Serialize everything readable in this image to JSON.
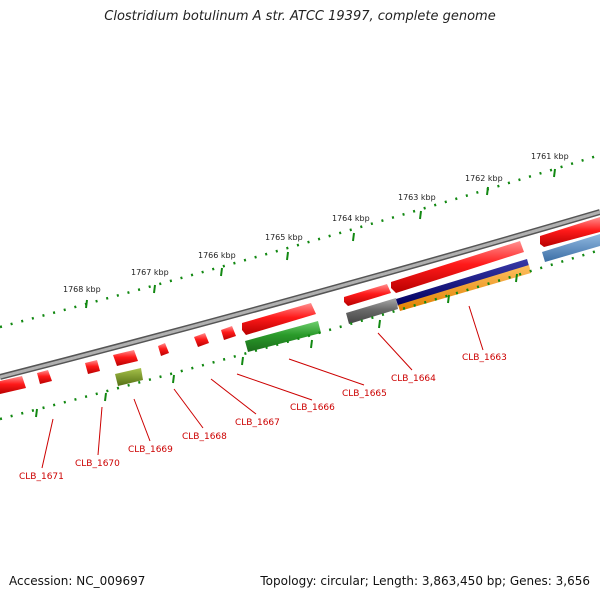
{
  "title": "Clostridium botulinum A str. ATCC 19397, complete genome",
  "footer": {
    "accession": "Accession: NC_009697",
    "summary": "Topology: circular; Length: 3,863,450 bp; Genes: 3,656"
  },
  "ruler": [
    "1761 kbp",
    "1762 kbp",
    "1763 kbp",
    "1764 kbp",
    "1765 kbp",
    "1766 kbp",
    "1767 kbp",
    "1768 kbp"
  ],
  "genes": [
    "CLB_1663",
    "CLB_1664",
    "CLB_1665",
    "CLB_1666",
    "CLB_1667",
    "CLB_1668",
    "CLB_1669",
    "CLB_1670",
    "CLB_1671"
  ],
  "colors": {
    "forward_gene": "#ee0000",
    "rna": "#2a8a2a",
    "reverse_gene": "#cc0000",
    "unknown_gene": "#666666",
    "blue_feature": "#000080",
    "orange_feature": "#ff9900",
    "olive_feature": "#6f8f1f",
    "light_blue_feature": "#5b8fc0",
    "backbone": "#808080",
    "dots": "#118811",
    "label": "#cc0000"
  }
}
